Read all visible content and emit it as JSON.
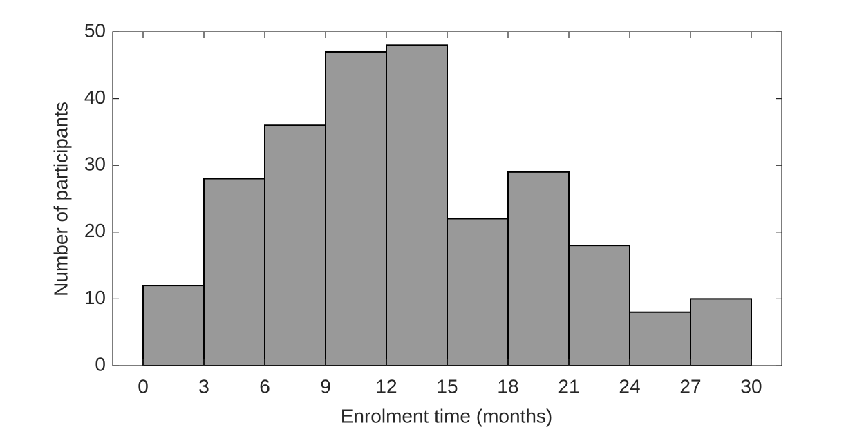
{
  "chart_data": {
    "type": "histogram",
    "xlabel": "Enrolment time (months)",
    "ylabel": "Number of participants",
    "bins": [
      0,
      3,
      6,
      9,
      12,
      15,
      18,
      21,
      24,
      27,
      30
    ],
    "counts": [
      12,
      28,
      36,
      47,
      48,
      22,
      29,
      18,
      8,
      10
    ],
    "color": "#999999",
    "xlim": [
      -1.5,
      31.5
    ],
    "ylim": [
      0,
      50
    ],
    "xticks": [
      0,
      3,
      6,
      9,
      12,
      15,
      18,
      21,
      24,
      27,
      30
    ],
    "yticks": [
      0,
      10,
      20,
      30,
      40,
      50
    ],
    "grid": false
  }
}
